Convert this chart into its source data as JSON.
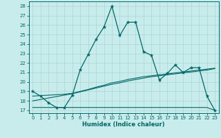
{
  "xlabel": "Humidex (Indice chaleur)",
  "bg_color": "#c8ecec",
  "grid_color": "#aad4d4",
  "line_color": "#006666",
  "xlim": [
    -0.5,
    23.5
  ],
  "ylim": [
    16.7,
    28.5
  ],
  "yticks": [
    17,
    18,
    19,
    20,
    21,
    22,
    23,
    24,
    25,
    26,
    27,
    28
  ],
  "xticks": [
    0,
    1,
    2,
    3,
    4,
    5,
    6,
    7,
    8,
    9,
    10,
    11,
    12,
    13,
    14,
    15,
    16,
    17,
    18,
    19,
    20,
    21,
    22,
    23
  ],
  "series1_x": [
    0,
    1,
    2,
    3,
    4,
    5,
    6,
    7,
    8,
    9,
    10,
    11,
    12,
    13,
    14,
    15,
    16,
    17,
    18,
    19,
    20,
    21,
    22,
    23
  ],
  "series1_y": [
    19.0,
    18.5,
    17.8,
    17.3,
    17.3,
    18.6,
    21.3,
    22.9,
    24.5,
    25.8,
    28.0,
    24.9,
    26.3,
    26.3,
    23.2,
    22.8,
    20.2,
    20.9,
    21.8,
    21.0,
    21.5,
    21.5,
    18.5,
    17.0
  ],
  "series2_x": [
    0,
    1,
    2,
    3,
    4,
    5,
    6,
    7,
    8,
    9,
    10,
    11,
    12,
    13,
    14,
    15,
    16,
    17,
    18,
    19,
    20,
    21,
    22,
    23
  ],
  "series2_y": [
    17.3,
    17.3,
    17.3,
    17.3,
    17.3,
    17.3,
    17.3,
    17.3,
    17.3,
    17.3,
    17.3,
    17.3,
    17.3,
    17.3,
    17.3,
    17.3,
    17.3,
    17.3,
    17.3,
    17.3,
    17.3,
    17.3,
    17.3,
    17.0
  ],
  "series3_x": [
    0,
    1,
    2,
    3,
    4,
    5,
    6,
    7,
    8,
    9,
    10,
    11,
    12,
    13,
    14,
    15,
    16,
    17,
    18,
    19,
    20,
    21,
    22,
    23
  ],
  "series3_y": [
    18.0,
    18.15,
    18.3,
    18.45,
    18.6,
    18.75,
    18.95,
    19.15,
    19.35,
    19.55,
    19.75,
    19.9,
    20.1,
    20.25,
    20.4,
    20.55,
    20.65,
    20.75,
    20.85,
    20.95,
    21.05,
    21.15,
    21.25,
    21.4
  ],
  "series4_x": [
    0,
    1,
    2,
    3,
    4,
    5,
    6,
    7,
    8,
    9,
    10,
    11,
    12,
    13,
    14,
    15,
    16,
    17,
    18,
    19,
    20,
    21,
    22,
    23
  ],
  "series4_y": [
    18.5,
    18.55,
    18.6,
    18.65,
    18.7,
    18.8,
    19.0,
    19.2,
    19.45,
    19.65,
    19.9,
    20.05,
    20.25,
    20.4,
    20.55,
    20.65,
    20.75,
    20.85,
    20.95,
    21.05,
    21.15,
    21.25,
    21.35,
    21.45
  ]
}
